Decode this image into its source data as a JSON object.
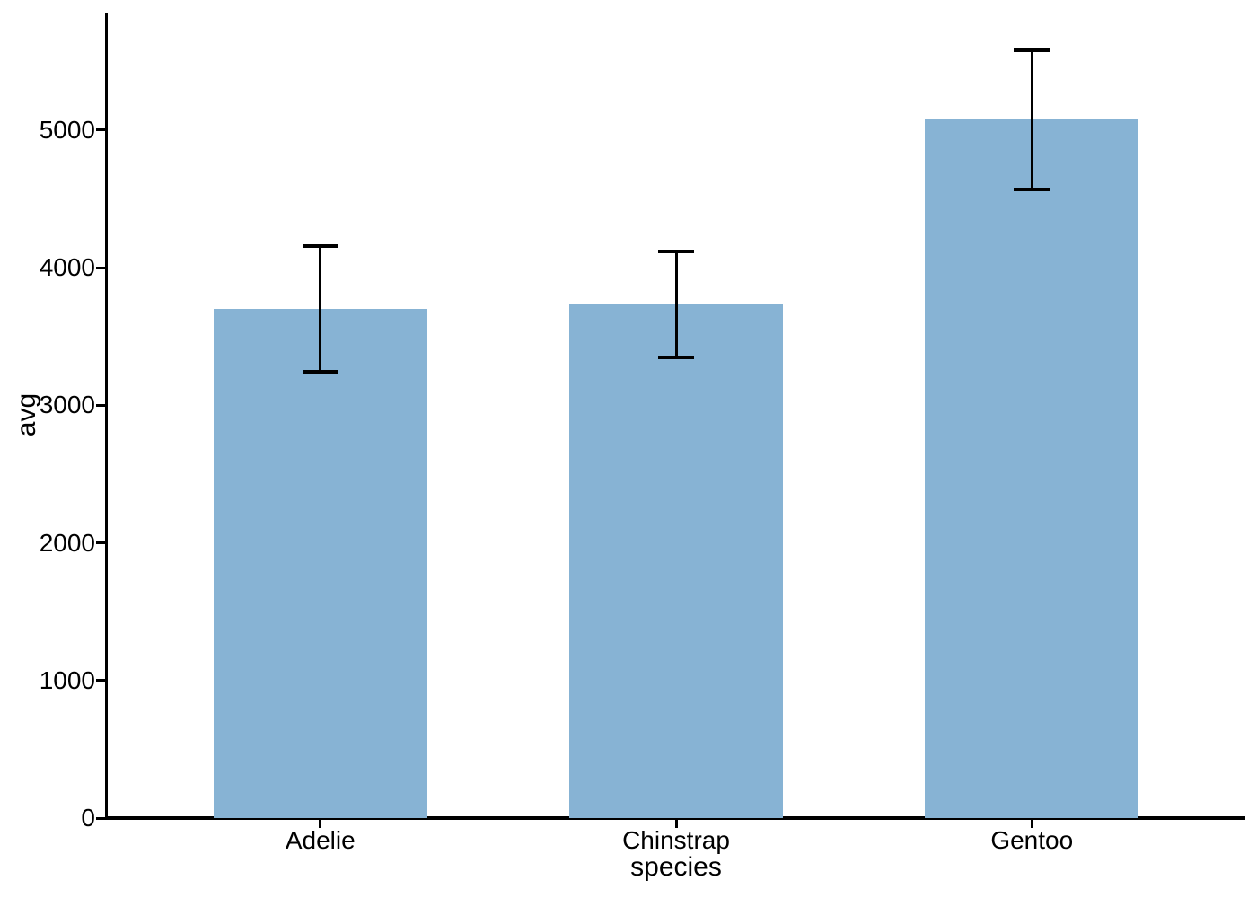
{
  "chart_data": {
    "type": "bar",
    "title": "",
    "xlabel": "species",
    "ylabel": "avg",
    "categories": [
      "Adelie",
      "Chinstrap",
      "Gentoo"
    ],
    "values": [
      3700.7,
      3733.1,
      5076.0
    ],
    "error_bars": {
      "kind": "symmetric (mean ± sd)",
      "low": [
        3242.1,
        3348.8,
        4571.9
      ],
      "high": [
        4159.2,
        4117.4,
        5580.1
      ]
    },
    "yticks": [
      0,
      1000,
      2000,
      3000,
      4000,
      5000
    ],
    "ytick_labels": [
      "0",
      "1000",
      "2000",
      "3000",
      "4000",
      "5000"
    ],
    "ylim": [
      0,
      5855
    ],
    "xlim": [
      -0.6,
      2.6
    ],
    "bar_width_units": 0.6,
    "bar_color": "#87b3d4",
    "errorbar_color": "#000000",
    "axis_color": "#000000",
    "background_color": "#ffffff",
    "grid": false,
    "legend": "none"
  }
}
